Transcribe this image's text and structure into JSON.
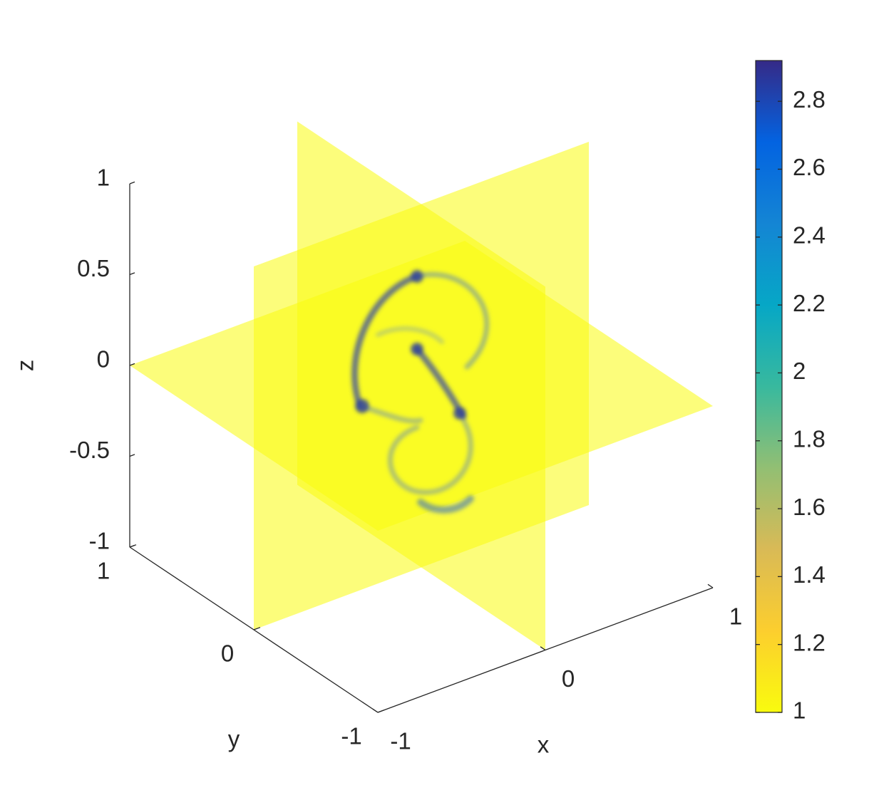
{
  "chart_data": {
    "type": "slice3d",
    "xlabel": "x",
    "ylabel": "y",
    "zlabel": "z",
    "xlim": [
      -1,
      1
    ],
    "ylim": [
      -1,
      1
    ],
    "zlim": [
      -1,
      1
    ],
    "xticks": [
      -1,
      0,
      1
    ],
    "yticks": [
      -1,
      0,
      1
    ],
    "zticks": [
      -1,
      -0.5,
      0,
      0.5,
      1
    ],
    "slices": {
      "x": [
        0
      ],
      "y": [
        0
      ],
      "z": [
        0
      ]
    },
    "clim": [
      1,
      2.92
    ],
    "cticks": [
      1,
      1.2,
      1.4,
      1.6,
      1.8,
      2,
      2.2,
      2.4,
      2.6,
      2.8
    ],
    "colormap": [
      "#f9fb0e",
      "#fcce2e",
      "#d9ba56",
      "#92bf73",
      "#38b99e",
      "#06a7c6",
      "#1485d4",
      "#0363e1",
      "#352a87"
    ]
  }
}
